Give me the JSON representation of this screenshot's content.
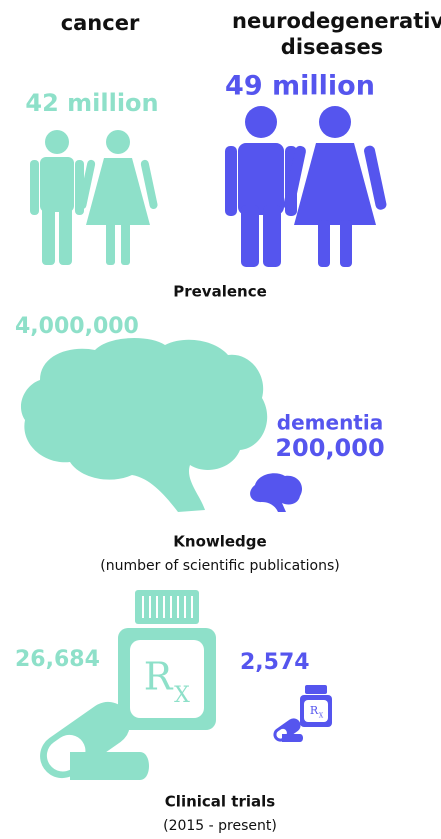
{
  "header": {
    "left": "cancer",
    "right": "neurodegenerative diseases"
  },
  "prevalence": {
    "cancer": "42 million",
    "neuro": "49 million",
    "label": "Prevalence"
  },
  "knowledge": {
    "cancer": "4,000,000",
    "neuro_name": "dementia",
    "neuro": "200,000",
    "label": "Knowledge",
    "sublabel": "(number of scientific publications)"
  },
  "trials": {
    "cancer": "26,684",
    "neuro": "2,574",
    "rx": [
      "R",
      "X"
    ],
    "label": "Clinical trials",
    "sublabel": "(2015 - present)"
  }
}
